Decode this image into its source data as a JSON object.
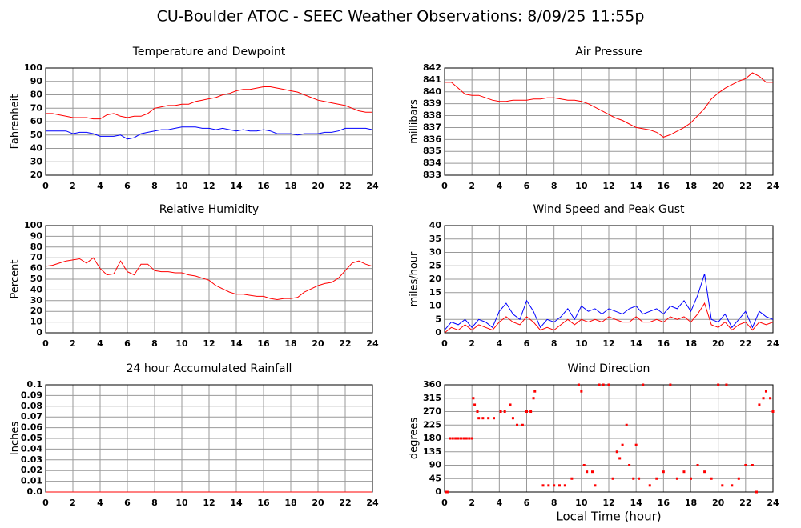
{
  "title": "CU-Boulder ATOC - SEEC Weather Observations: 8/09/25 11:55p",
  "xlabel": "Local Time (hour)",
  "chart_data": [
    {
      "type": "line",
      "title": "Temperature and Dewpoint",
      "ylabel": "Fahrenheit",
      "x": [
        0,
        0.5,
        1,
        1.5,
        2,
        2.5,
        3,
        3.5,
        4,
        4.5,
        5,
        5.5,
        6,
        6.5,
        7,
        7.5,
        8,
        8.5,
        9,
        9.5,
        10,
        10.5,
        11,
        11.5,
        12,
        12.5,
        13,
        13.5,
        14,
        14.5,
        15,
        15.5,
        16,
        16.5,
        17,
        17.5,
        18,
        18.5,
        19,
        19.5,
        20,
        20.5,
        21,
        21.5,
        22,
        22.5,
        23,
        23.5,
        24
      ],
      "series": [
        {
          "color": "#ff0000",
          "values": [
            66,
            66,
            65,
            64,
            63,
            63,
            63,
            62,
            62,
            65,
            66,
            64,
            63,
            64,
            64,
            66,
            70,
            71,
            72,
            72,
            73,
            73,
            75,
            76,
            77,
            78,
            80,
            81,
            83,
            84,
            84,
            85,
            86,
            86,
            85,
            84,
            83,
            82,
            80,
            78,
            76,
            75,
            74,
            73,
            72,
            70,
            68,
            67,
            67
          ]
        },
        {
          "color": "#0000ff",
          "values": [
            53,
            53,
            53,
            53,
            51,
            52,
            52,
            51,
            49,
            49,
            49,
            50,
            47,
            48,
            51,
            52,
            53,
            54,
            54,
            55,
            56,
            56,
            56,
            55,
            55,
            54,
            55,
            54,
            53,
            54,
            53,
            53,
            54,
            53,
            51,
            51,
            51,
            50,
            51,
            51,
            51,
            52,
            52,
            53,
            55,
            55,
            55,
            55,
            54
          ]
        }
      ],
      "xlim": [
        0,
        24
      ],
      "xticks": [
        0,
        2,
        4,
        6,
        8,
        10,
        12,
        14,
        16,
        18,
        20,
        22,
        24
      ],
      "ylim": [
        20,
        100
      ],
      "yticks": [
        20,
        30,
        40,
        50,
        60,
        70,
        80,
        90,
        100
      ],
      "grid": true
    },
    {
      "type": "line",
      "title": "Air Pressure",
      "ylabel": "millibars",
      "x": [
        0,
        0.5,
        1,
        1.5,
        2,
        2.5,
        3,
        3.5,
        4,
        4.5,
        5,
        5.5,
        6,
        6.5,
        7,
        7.5,
        8,
        8.5,
        9,
        9.5,
        10,
        10.5,
        11,
        11.5,
        12,
        12.5,
        13,
        13.5,
        14,
        14.5,
        15,
        15.5,
        16,
        16.5,
        17,
        17.5,
        18,
        18.5,
        19,
        19.5,
        20,
        20.5,
        21,
        21.5,
        22,
        22.5,
        23,
        23.5,
        24
      ],
      "series": [
        {
          "color": "#ff0000",
          "values": [
            840.8,
            840.8,
            840.3,
            839.8,
            839.7,
            839.7,
            839.5,
            839.3,
            839.2,
            839.2,
            839.3,
            839.3,
            839.3,
            839.4,
            839.4,
            839.5,
            839.5,
            839.4,
            839.3,
            839.3,
            839.2,
            839.0,
            838.7,
            838.4,
            838.1,
            837.8,
            837.6,
            837.3,
            837.0,
            836.9,
            836.8,
            836.6,
            836.2,
            836.4,
            836.7,
            837.0,
            837.4,
            838.0,
            838.6,
            839.4,
            839.9,
            840.3,
            840.6,
            840.9,
            841.1,
            841.6,
            841.3,
            840.8,
            840.8
          ]
        }
      ],
      "xlim": [
        0,
        24
      ],
      "xticks": [
        0,
        2,
        4,
        6,
        8,
        10,
        12,
        14,
        16,
        18,
        20,
        22,
        24
      ],
      "ylim": [
        833,
        842
      ],
      "yticks": [
        833,
        834,
        835,
        836,
        837,
        838,
        839,
        840,
        841,
        842
      ],
      "grid": true
    },
    {
      "type": "line",
      "title": "Relative Humidity",
      "ylabel": "Percent",
      "x": [
        0,
        0.5,
        1,
        1.5,
        2,
        2.5,
        3,
        3.5,
        4,
        4.5,
        5,
        5.5,
        6,
        6.5,
        7,
        7.5,
        8,
        8.5,
        9,
        9.5,
        10,
        10.5,
        11,
        11.5,
        12,
        12.5,
        13,
        13.5,
        14,
        14.5,
        15,
        15.5,
        16,
        16.5,
        17,
        17.5,
        18,
        18.5,
        19,
        19.5,
        20,
        20.5,
        21,
        21.5,
        22,
        22.5,
        23,
        23.5,
        24
      ],
      "series": [
        {
          "color": "#ff0000",
          "values": [
            62,
            63,
            65,
            67,
            68,
            69,
            65,
            70,
            60,
            54,
            55,
            67,
            57,
            54,
            64,
            64,
            58,
            57,
            57,
            56,
            56,
            54,
            53,
            51,
            49,
            44,
            41,
            38,
            36,
            36,
            35,
            34,
            34,
            32,
            31,
            32,
            32,
            33,
            38,
            41,
            44,
            46,
            47,
            51,
            58,
            65,
            67,
            64,
            62
          ]
        }
      ],
      "xlim": [
        0,
        24
      ],
      "xticks": [
        0,
        2,
        4,
        6,
        8,
        10,
        12,
        14,
        16,
        18,
        20,
        22,
        24
      ],
      "ylim": [
        0,
        100
      ],
      "yticks": [
        0,
        10,
        20,
        30,
        40,
        50,
        60,
        70,
        80,
        90,
        100
      ],
      "grid": true
    },
    {
      "type": "line",
      "title": "Wind Speed and Peak Gust",
      "ylabel": "miles/hour",
      "x": [
        0,
        0.5,
        1,
        1.5,
        2,
        2.5,
        3,
        3.5,
        4,
        4.5,
        5,
        5.5,
        6,
        6.5,
        7,
        7.5,
        8,
        8.5,
        9,
        9.5,
        10,
        10.5,
        11,
        11.5,
        12,
        12.5,
        13,
        13.5,
        14,
        14.5,
        15,
        15.5,
        16,
        16.5,
        17,
        17.5,
        18,
        18.5,
        19,
        19.5,
        20,
        20.5,
        21,
        21.5,
        22,
        22.5,
        23,
        23.5,
        24
      ],
      "series": [
        {
          "color": "#0000ff",
          "values": [
            1,
            4,
            3,
            5,
            2,
            5,
            4,
            2,
            8,
            11,
            7,
            5,
            12,
            8,
            2,
            5,
            4,
            6,
            9,
            5,
            10,
            8,
            9,
            7,
            9,
            8,
            7,
            9,
            10,
            7,
            8,
            9,
            7,
            10,
            9,
            12,
            8,
            14,
            22,
            5,
            4,
            7,
            2,
            5,
            8,
            2,
            8,
            6,
            5
          ]
        },
        {
          "color": "#ff0000",
          "values": [
            0,
            2,
            1,
            3,
            1,
            3,
            2,
            1,
            4,
            6,
            4,
            3,
            6,
            4,
            1,
            2,
            1,
            3,
            5,
            3,
            5,
            4,
            5,
            4,
            6,
            5,
            4,
            4,
            6,
            4,
            4,
            5,
            4,
            6,
            5,
            6,
            4,
            7,
            11,
            3,
            2,
            4,
            1,
            3,
            4,
            1,
            4,
            3,
            4
          ]
        }
      ],
      "xlim": [
        0,
        24
      ],
      "xticks": [
        0,
        2,
        4,
        6,
        8,
        10,
        12,
        14,
        16,
        18,
        20,
        22,
        24
      ],
      "ylim": [
        0,
        40
      ],
      "yticks": [
        0,
        5,
        10,
        15,
        20,
        25,
        30,
        35,
        40
      ],
      "grid": true
    },
    {
      "type": "line",
      "title": "24 hour Accumulated Rainfall",
      "ylabel": "Inches",
      "x": [
        0,
        24
      ],
      "series": [
        {
          "color": "#ff0000",
          "values": [
            0,
            0
          ]
        }
      ],
      "xlim": [
        0,
        24
      ],
      "xticks": [
        0,
        2,
        4,
        6,
        8,
        10,
        12,
        14,
        16,
        18,
        20,
        22,
        24
      ],
      "ylim": [
        0,
        0.1
      ],
      "yticks": [
        {
          "value": 0,
          "label": "0.0"
        },
        0.01,
        0.02,
        0.03,
        0.04,
        0.05,
        0.06,
        0.07,
        0.08,
        0.09,
        0.1
      ],
      "grid": true
    },
    {
      "type": "scatter",
      "title": "Wind Direction",
      "ylabel": "degrees",
      "color": "#ff0000",
      "x": [
        0.1,
        0.2,
        0.4,
        0.6,
        0.8,
        1.0,
        1.2,
        1.4,
        1.6,
        1.8,
        2.0,
        2.1,
        2.2,
        2.4,
        2.5,
        2.8,
        3.2,
        3.6,
        4.1,
        4.4,
        4.8,
        5.0,
        5.3,
        5.7,
        6.0,
        6.3,
        6.5,
        6.6,
        7.2,
        7.6,
        8.0,
        8.4,
        8.8,
        9.3,
        9.8,
        10.0,
        10.2,
        10.4,
        10.8,
        11.0,
        11.3,
        11.6,
        12.0,
        12.3,
        12.6,
        12.8,
        13.0,
        13.3,
        13.5,
        13.8,
        14.0,
        14.2,
        14.5,
        15.0,
        15.5,
        16.0,
        16.5,
        17.0,
        17.5,
        18.0,
        18.5,
        19.0,
        19.5,
        20.0,
        20.3,
        20.6,
        21.0,
        21.5,
        22.0,
        22.5,
        22.8,
        23.0,
        23.3,
        23.5,
        23.8,
        24.0
      ],
      "values": [
        0,
        0,
        180,
        180,
        180,
        180,
        180,
        180,
        180,
        180,
        180,
        315,
        293,
        270,
        248,
        248,
        248,
        248,
        270,
        270,
        293,
        248,
        225,
        225,
        270,
        270,
        315,
        338,
        22,
        22,
        22,
        22,
        22,
        45,
        360,
        338,
        90,
        68,
        68,
        22,
        360,
        360,
        360,
        45,
        135,
        113,
        158,
        225,
        90,
        45,
        158,
        45,
        360,
        22,
        45,
        68,
        360,
        45,
        68,
        45,
        90,
        68,
        45,
        360,
        22,
        360,
        22,
        45,
        90,
        90,
        0,
        293,
        315,
        338,
        315,
        270
      ],
      "xlim": [
        0,
        24
      ],
      "xticks": [
        0,
        2,
        4,
        6,
        8,
        10,
        12,
        14,
        16,
        18,
        20,
        22,
        24
      ],
      "ylim": [
        0,
        360
      ],
      "yticks": [
        0,
        45,
        90,
        135,
        180,
        225,
        270,
        315,
        360
      ],
      "grid": true
    }
  ]
}
